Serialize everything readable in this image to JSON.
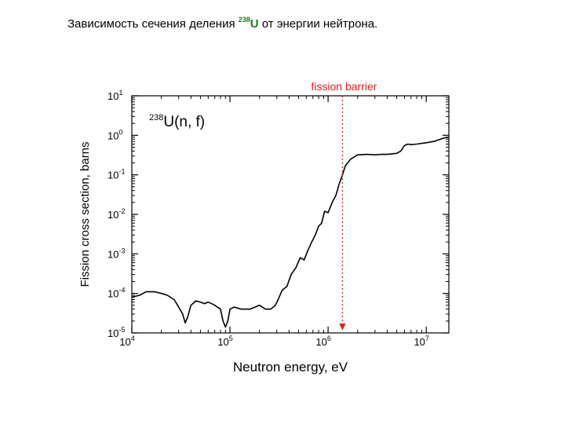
{
  "slide": {
    "title_before": "Зависимость сечения деления",
    "isotope_mass": "238",
    "isotope_symbol": "U",
    "title_after": "от энергии нейтрона."
  },
  "chart_data": {
    "type": "line",
    "title": "",
    "panel_label": {
      "mass": "238",
      "text": "U(n, f)"
    },
    "xlabel": "Neutron energy, eV",
    "ylabel": "Fission cross section, barns",
    "x_scale": "log",
    "y_scale": "log",
    "xlim": [
      10000,
      17000000
    ],
    "ylim": [
      1e-05,
      10
    ],
    "x_ticks": [
      {
        "value": 10000,
        "base": "10",
        "exp": "4"
      },
      {
        "value": 100000,
        "base": "10",
        "exp": "5"
      },
      {
        "value": 1000000,
        "base": "10",
        "exp": "6"
      },
      {
        "value": 10000000,
        "base": "10",
        "exp": "7"
      }
    ],
    "y_ticks": [
      {
        "value": 1e-05,
        "base": "10",
        "exp": "-5"
      },
      {
        "value": 0.0001,
        "base": "10",
        "exp": "-4"
      },
      {
        "value": 0.001,
        "base": "10",
        "exp": "-3"
      },
      {
        "value": 0.01,
        "base": "10",
        "exp": "-2"
      },
      {
        "value": 0.1,
        "base": "10",
        "exp": "-1"
      },
      {
        "value": 1,
        "base": "10",
        "exp": "0"
      },
      {
        "value": 10,
        "base": "10",
        "exp": "1"
      }
    ],
    "grid": false,
    "annotation": {
      "label": "fission barrier",
      "x": 1400000,
      "color": "#e0201b"
    },
    "series": [
      {
        "color": "#000000",
        "x": [
          10000,
          12000,
          14000,
          17000,
          20000,
          23000,
          27000,
          30000,
          33000,
          35000,
          37000,
          40000,
          45000,
          50000,
          55000,
          60000,
          65000,
          70000,
          80000,
          85000,
          90000,
          95000,
          100000,
          110000,
          130000,
          160000,
          200000,
          230000,
          260000,
          290000,
          310000,
          340000,
          380000,
          420000,
          470000,
          520000,
          570000,
          620000,
          680000,
          740000,
          800000,
          860000,
          920000,
          1000000,
          1100000,
          1200000,
          1300000,
          1400000,
          1500000,
          1700000,
          2000000,
          2500000,
          3000000,
          3500000,
          4000000,
          5000000,
          5500000,
          6000000,
          6500000,
          7000000,
          8000000,
          10000000,
          12000000,
          14000000,
          15000000,
          17000000
        ],
        "y": [
          8e-05,
          9e-05,
          0.00011,
          0.00011,
          0.0001,
          9e-05,
          7e-05,
          4.5e-05,
          3e-05,
          1.8e-05,
          2.5e-05,
          5e-05,
          6.5e-05,
          6e-05,
          5.5e-05,
          6e-05,
          5.5e-05,
          5e-05,
          4e-05,
          2e-05,
          1.4e-05,
          2e-05,
          4e-05,
          4.5e-05,
          4e-05,
          4e-05,
          5e-05,
          4e-05,
          4e-05,
          5e-05,
          7e-05,
          0.00012,
          0.00015,
          0.0003,
          0.00045,
          0.0008,
          0.0007,
          0.0012,
          0.002,
          0.003,
          0.005,
          0.006,
          0.012,
          0.011,
          0.02,
          0.03,
          0.06,
          0.1,
          0.17,
          0.25,
          0.32,
          0.33,
          0.32,
          0.33,
          0.33,
          0.35,
          0.4,
          0.55,
          0.6,
          0.58,
          0.6,
          0.65,
          0.7,
          0.8,
          0.85,
          0.9
        ]
      }
    ]
  }
}
